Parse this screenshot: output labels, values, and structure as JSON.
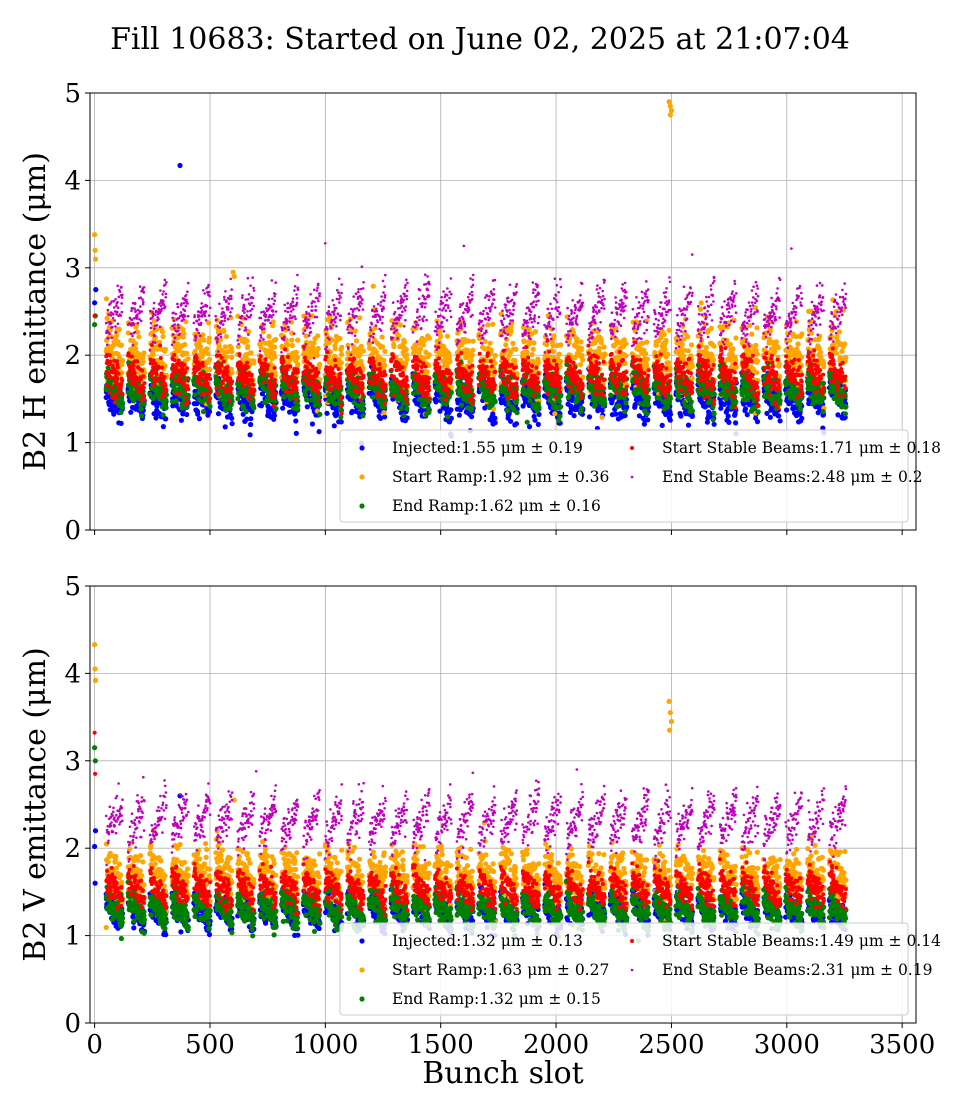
{
  "title": "Fill 10683: Started on June 02, 2025 at 21:07:04",
  "colors": {
    "injected": "#0000ff",
    "start_ramp": "#ffa500",
    "end_ramp": "#008000",
    "start_stable": "#ff0000",
    "end_stable": "#bf00bf"
  },
  "chart_data": [
    {
      "type": "scatter",
      "ylabel": "B2 H emittance (μm)",
      "xlabel": "",
      "xlim": [
        -20,
        3560
      ],
      "ylim": [
        0,
        5
      ],
      "xticks": [
        0,
        500,
        1000,
        1500,
        2000,
        2500,
        3000,
        3500
      ],
      "yticks": [
        0,
        1,
        2,
        3,
        4,
        5
      ],
      "grid": true,
      "legend_position": "lower-right",
      "series": [
        {
          "key": "injected",
          "name": "Injected:1.55 μm ± 0.19",
          "mean": 1.55,
          "std": 0.19,
          "marker": "dot-large",
          "outliers": [
            [
              370,
              4.17
            ],
            [
              0,
              2.6
            ],
            [
              5,
              2.75
            ]
          ]
        },
        {
          "key": "start_ramp",
          "name": "Start Ramp:1.92 μm ± 0.36",
          "mean": 1.92,
          "std": 0.36,
          "marker": "dot-large",
          "outliers": [
            [
              2490,
              4.9
            ],
            [
              2495,
              4.85
            ],
            [
              2500,
              4.8
            ],
            [
              2495,
              4.75
            ],
            [
              0,
              3.38
            ],
            [
              2,
              3.2
            ],
            [
              4,
              3.1
            ],
            [
              600,
              2.95
            ],
            [
              605,
              2.9
            ]
          ]
        },
        {
          "key": "end_ramp",
          "name": "End Ramp:1.62 μm ± 0.16",
          "mean": 1.62,
          "std": 0.16,
          "marker": "dot-large",
          "outliers": [
            [
              0,
              2.35
            ],
            [
              3,
              2.45
            ]
          ]
        },
        {
          "key": "start_stable",
          "name": "Start Stable Beams:1.71 μm ± 0.18",
          "mean": 1.71,
          "std": 0.18,
          "marker": "dot-small",
          "outliers": [
            [
              0,
              2.45
            ]
          ]
        },
        {
          "key": "end_stable",
          "name": "End Stable Beams:2.48 μm ± 0.2",
          "mean": 2.48,
          "std": 0.2,
          "marker": "dot-tiny",
          "outliers": [
            [
              1000,
              3.28
            ],
            [
              3020,
              3.22
            ],
            [
              1600,
              3.25
            ]
          ]
        }
      ]
    },
    {
      "type": "scatter",
      "ylabel": "B2 V emittance (μm)",
      "xlabel": "Bunch slot",
      "xlim": [
        -20,
        3560
      ],
      "ylim": [
        0,
        5
      ],
      "xticks": [
        0,
        500,
        1000,
        1500,
        2000,
        2500,
        3000,
        3500
      ],
      "yticks": [
        0,
        1,
        2,
        3,
        4,
        5
      ],
      "grid": true,
      "legend_position": "lower-right",
      "series": [
        {
          "key": "injected",
          "name": "Injected:1.32 μm ± 0.13",
          "mean": 1.32,
          "std": 0.13,
          "marker": "dot-large",
          "outliers": [
            [
              0,
              2.02
            ],
            [
              2,
              1.6
            ],
            [
              4,
              2.2
            ],
            [
              370,
              2.6
            ]
          ]
        },
        {
          "key": "start_ramp",
          "name": "Start Ramp:1.63 μm ± 0.27",
          "mean": 1.63,
          "std": 0.27,
          "marker": "dot-large",
          "outliers": [
            [
              0,
              4.33
            ],
            [
              2,
              4.05
            ],
            [
              4,
              3.92
            ],
            [
              2490,
              3.68
            ],
            [
              2495,
              3.55
            ],
            [
              2500,
              3.45
            ],
            [
              2492,
              3.35
            ],
            [
              605,
              2.55
            ]
          ]
        },
        {
          "key": "end_ramp",
          "name": "End Ramp:1.32 μm ± 0.15",
          "mean": 1.32,
          "std": 0.15,
          "marker": "dot-large",
          "outliers": [
            [
              0,
              3.15
            ],
            [
              3,
              3.0
            ]
          ]
        },
        {
          "key": "start_stable",
          "name": "Start Stable Beams:1.49 μm ± 0.14",
          "mean": 1.49,
          "std": 0.14,
          "marker": "dot-small",
          "outliers": [
            [
              0,
              3.32
            ],
            [
              2,
              2.85
            ]
          ]
        },
        {
          "key": "end_stable",
          "name": "End Stable Beams:2.31 μm ± 0.19",
          "mean": 2.31,
          "std": 0.19,
          "marker": "dot-tiny",
          "outliers": [
            [
              2090,
              2.9
            ],
            [
              700,
              2.88
            ]
          ]
        }
      ]
    }
  ]
}
